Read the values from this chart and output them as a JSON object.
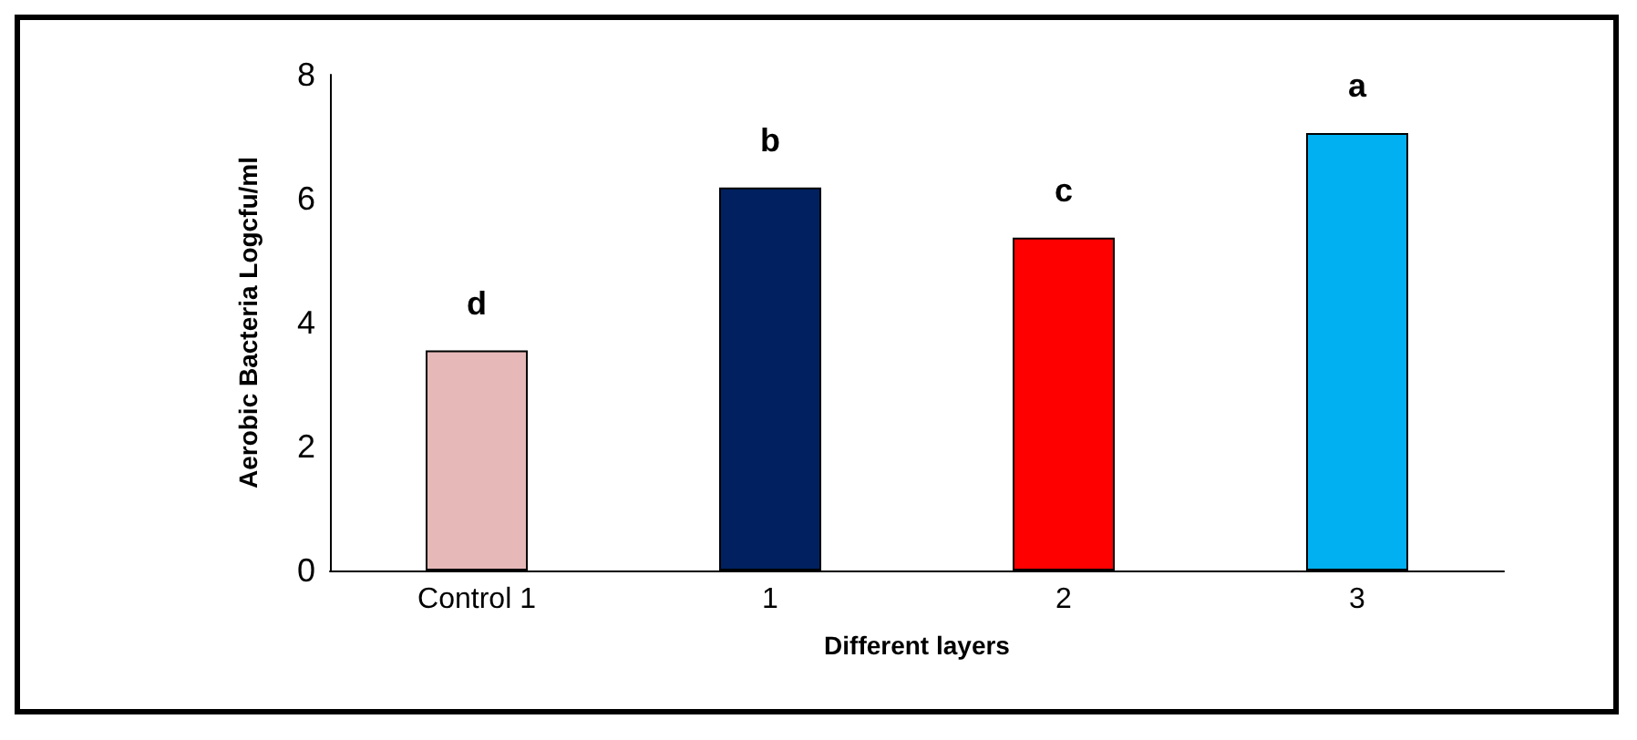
{
  "chart_data": {
    "type": "bar",
    "xlabel": "Different layers",
    "ylabel": "Aerobic Bacteria Logcfu/ml",
    "categories": [
      "Control 1",
      "1",
      "2",
      "3"
    ],
    "values": [
      3.55,
      6.18,
      5.37,
      7.06
    ],
    "colors": [
      "#e6b9b8",
      "#002060",
      "#ff0000",
      "#00b0f0"
    ],
    "ylim": [
      0,
      8
    ],
    "yticks": [
      0,
      2,
      4,
      6,
      8
    ],
    "grid": false,
    "annotations": [
      {
        "text": "d",
        "x": "Control 1",
        "y": 3.55
      },
      {
        "text": "b",
        "x": "1",
        "y": 6.18
      },
      {
        "text": "c",
        "x": "2",
        "y": 5.37
      },
      {
        "text": "a",
        "x": "3",
        "y": 7.06
      }
    ]
  }
}
